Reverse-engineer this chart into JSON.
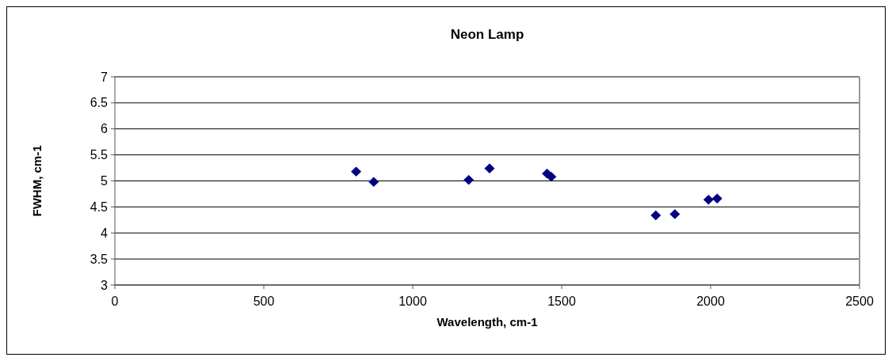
{
  "chart_data": {
    "type": "scatter",
    "title": "Neon Lamp",
    "xlabel": "Wavelength, cm-1",
    "ylabel": "FWHM, cm-1",
    "x": [
      810,
      869,
      1188,
      1258,
      1451,
      1465,
      1816,
      1880,
      1993,
      2022
    ],
    "series": [
      {
        "color": "#000080",
        "values": [
          5.18,
          4.98,
          5.02,
          5.24,
          5.14,
          5.08,
          4.34,
          4.36,
          4.64,
          4.66
        ]
      }
    ],
    "xlim": [
      0,
      2500
    ],
    "xticks": [
      0,
      500,
      1000,
      1500,
      2000,
      2500
    ],
    "ylim": [
      3,
      7
    ],
    "yticks": [
      3,
      3.5,
      4,
      4.5,
      5,
      5.5,
      6,
      6.5,
      7
    ],
    "grid": "y",
    "marker": "diamond"
  }
}
